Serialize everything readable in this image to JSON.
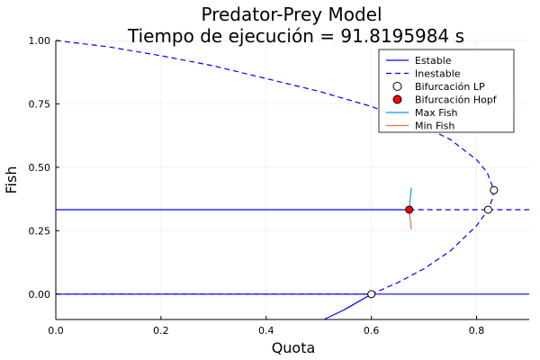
{
  "chart_data": {
    "type": "line",
    "title_lines": [
      "Predator-Prey Model",
      "Tiempo de ejecución = 91.8195984 s"
    ],
    "xlabel": "Quota",
    "ylabel": "Fish",
    "xlim": [
      0.0,
      0.9
    ],
    "ylim": [
      -0.1,
      1.0
    ],
    "xticks": [
      0.0,
      0.2,
      0.4,
      0.6,
      0.8
    ],
    "xtick_labels": [
      "0.0",
      "0.2",
      "0.4",
      "0.6",
      "0.8"
    ],
    "yticks": [
      0.0,
      0.25,
      0.5,
      0.75,
      1.0
    ],
    "ytick_labels": [
      "0.00",
      "0.25",
      "0.50",
      "0.75",
      "1.00"
    ],
    "grid": true,
    "legend_position": "top-right",
    "colors": {
      "branch": "#0000ff",
      "max_fish": "#009af9",
      "min_fish": "#e26f46",
      "lp_fill": "#ffffff",
      "hopf_fill": "#ff0000"
    },
    "legend": [
      {
        "label": "Estable",
        "style": "solid"
      },
      {
        "label": "Inestable",
        "style": "dashed"
      },
      {
        "label": "Bifurcación LP",
        "style": "marker-white"
      },
      {
        "label": "Bifurcación Hopf",
        "style": "marker-red"
      },
      {
        "label": "Max Fish",
        "style": "max"
      },
      {
        "label": "Min Fish",
        "style": "min"
      }
    ],
    "series": [
      {
        "kind": "stable",
        "x": [
          0.0,
          0.6,
          0.9
        ],
        "y": [
          0.0,
          0.0,
          0.0
        ]
      },
      {
        "kind": "unstable",
        "x": [
          0.0,
          0.6
        ],
        "y": [
          0.0,
          0.0
        ]
      },
      {
        "kind": "stable",
        "x": [
          0.0,
          0.672
        ],
        "y": [
          0.333,
          0.333
        ]
      },
      {
        "kind": "unstable",
        "x": [
          0.672,
          0.822
        ],
        "y": [
          0.333,
          0.333
        ]
      },
      {
        "kind": "unstable",
        "x": [
          0.822,
          0.9
        ],
        "y": [
          0.333,
          0.333
        ]
      },
      {
        "kind": "unstable",
        "x": [
          0.0,
          0.1,
          0.2,
          0.3,
          0.4,
          0.5,
          0.6,
          0.7,
          0.75,
          0.8,
          0.82,
          0.833
        ],
        "y": [
          1.0,
          0.975,
          0.94,
          0.9,
          0.85,
          0.8,
          0.74,
          0.66,
          0.61,
          0.53,
          0.48,
          0.41
        ]
      },
      {
        "kind": "unstable",
        "x": [
          0.833,
          0.83,
          0.822,
          0.8,
          0.75,
          0.7,
          0.65,
          0.6
        ],
        "y": [
          0.41,
          0.375,
          0.333,
          0.27,
          0.17,
          0.1,
          0.045,
          0.0
        ]
      },
      {
        "kind": "stable",
        "x": [
          0.51,
          0.55,
          0.6
        ],
        "y": [
          -0.1,
          -0.06,
          -0.0
        ]
      },
      {
        "kind": "max",
        "x": [
          0.672,
          0.674,
          0.676
        ],
        "y": [
          0.333,
          0.38,
          0.42
        ]
      },
      {
        "kind": "min",
        "x": [
          0.672,
          0.674,
          0.676
        ],
        "y": [
          0.333,
          0.29,
          0.255
        ]
      }
    ],
    "lp_points": [
      {
        "x": 0.6,
        "y": 0.0
      },
      {
        "x": 0.822,
        "y": 0.333
      },
      {
        "x": 0.833,
        "y": 0.41
      }
    ],
    "hopf_points": [
      {
        "x": 0.672,
        "y": 0.333
      }
    ]
  }
}
